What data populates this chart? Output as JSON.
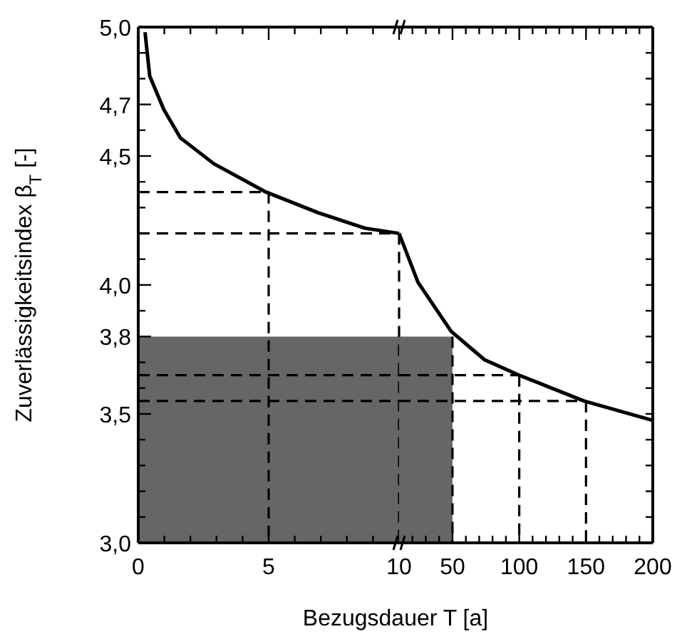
{
  "chart_data": [
    {
      "type": "line",
      "xlabel": "Bezugsdauer T [a]",
      "ylabel": "Zuverlässigkeitsindex β$_{T}$ [-]",
      "xlim": [
        0,
        10
      ],
      "ylim": [
        3,
        5
      ],
      "xticks": [
        0,
        {
          "value": 1,
          "label": null
        },
        {
          "value": 2,
          "label": null
        },
        {
          "value": 3,
          "label": null
        },
        {
          "value": 4,
          "label": null
        },
        5,
        {
          "value": 6,
          "label": null
        },
        {
          "value": 7,
          "label": null
        },
        {
          "value": 8,
          "label": null
        },
        {
          "value": 9,
          "label": null
        },
        10
      ],
      "yticks": [
        {
          "value": 3,
          "label": "3,0"
        },
        {
          "value": 3.1,
          "label": null
        },
        {
          "value": 3.2,
          "label": null
        },
        {
          "value": 3.3,
          "label": null
        },
        {
          "value": 3.4,
          "label": null
        },
        {
          "value": 3.5,
          "label": "3,5"
        },
        {
          "value": 3.6,
          "label": null
        },
        {
          "value": 3.7,
          "label": null
        },
        {
          "value": 3.8,
          "label": "3,8"
        },
        {
          "value": 3.9,
          "label": null
        },
        {
          "value": 4,
          "label": "4,0"
        },
        {
          "value": 4.1,
          "label": null
        },
        {
          "value": 4.2,
          "label": null
        },
        {
          "value": 4.3,
          "label": null
        },
        {
          "value": 4.4,
          "label": null
        },
        {
          "value": 4.5,
          "label": "4,5"
        },
        {
          "value": 4.6,
          "label": null
        },
        {
          "value": 4.7,
          "label": "4,7"
        },
        {
          "value": 4.8,
          "label": null
        },
        {
          "value": 4.9,
          "label": null
        },
        {
          "value": 5,
          "label": "5,0"
        }
      ],
      "series": [
        {
          "x": [
            0.26,
            0.44,
            0.98,
            1.62,
            2.9,
            4.9,
            6.9,
            8.7,
            10
          ],
          "values": [
            4.98,
            4.81,
            4.68,
            4.57,
            4.47,
            4.36,
            4.28,
            4.22,
            4.2
          ],
          "color": "#000000",
          "line_style": "solid"
        },
        {
          "x": [
            0,
            5
          ],
          "values": [
            4.36,
            4.36
          ],
          "color": "#000000",
          "line_style": "dashed"
        },
        {
          "x": [
            5,
            5
          ],
          "values": [
            4.36,
            3
          ],
          "color": "#000000",
          "line_style": "dashed"
        },
        {
          "x": [
            0,
            10
          ],
          "values": [
            4.2,
            4.2
          ],
          "color": "#000000",
          "line_style": "dashed"
        },
        {
          "x": [
            10,
            10
          ],
          "values": [
            4.2,
            3
          ],
          "color": "#000000",
          "line_style": "dashed"
        },
        {
          "x": [
            0,
            10
          ],
          "values": [
            3.65,
            3.65
          ],
          "color": "#000000",
          "line_style": "dashed"
        },
        {
          "x": [
            0,
            10
          ],
          "values": [
            3.55,
            3.55
          ],
          "color": "#000000",
          "line_style": "dashed"
        },
        {
          "type": "area",
          "x": [
            0,
            10
          ],
          "values": [
            3.8,
            3.8
          ],
          "color": "#666666"
        }
      ]
    },
    {
      "type": "line",
      "tick_labels": "x",
      "xlim": [
        10,
        200
      ],
      "ylim": [
        3,
        5
      ],
      "xticks": [
        {
          "value": 20,
          "label": null
        },
        {
          "value": 30,
          "label": null
        },
        {
          "value": 40,
          "label": null
        },
        50,
        {
          "value": 60,
          "label": null
        },
        {
          "value": 70,
          "label": null
        },
        {
          "value": 80,
          "label": null
        },
        {
          "value": 90,
          "label": null
        },
        100,
        {
          "value": 110,
          "label": null
        },
        {
          "value": 120,
          "label": null
        },
        {
          "value": 130,
          "label": null
        },
        {
          "value": 140,
          "label": null
        },
        150,
        {
          "value": 160,
          "label": null
        },
        {
          "value": 170,
          "label": null
        },
        {
          "value": 180,
          "label": null
        },
        {
          "value": 190,
          "label": null
        },
        200
      ],
      "yticks": [
        {
          "value": 3,
          "label": null
        },
        {
          "value": 3.1,
          "label": null
        },
        {
          "value": 3.2,
          "label": null
        },
        {
          "value": 3.3,
          "label": null
        },
        {
          "value": 3.4,
          "label": null
        },
        {
          "value": 3.5,
          "label": null
        },
        {
          "value": 3.6,
          "label": null
        },
        {
          "value": 3.7,
          "label": null
        },
        {
          "value": 3.8,
          "label": null
        },
        {
          "value": 3.9,
          "label": null
        },
        {
          "value": 4,
          "label": null
        },
        {
          "value": 4.1,
          "label": null
        },
        {
          "value": 4.2,
          "label": null
        },
        {
          "value": 4.3,
          "label": null
        },
        {
          "value": 4.4,
          "label": null
        },
        {
          "value": 4.5,
          "label": null
        },
        {
          "value": 4.6,
          "label": null
        },
        {
          "value": 4.7,
          "label": null
        },
        {
          "value": 4.8,
          "label": null
        },
        {
          "value": 4.9,
          "label": null
        },
        {
          "value": 5,
          "label": null
        }
      ],
      "series": [
        {
          "x": [
            10,
            24.2,
            49,
            74,
            100,
            148.5,
            200
          ],
          "values": [
            4.2,
            4.01,
            3.82,
            3.71,
            3.65,
            3.55,
            3.475
          ],
          "color": "#000000",
          "line_style": "solid"
        },
        {
          "x": [
            50,
            50
          ],
          "values": [
            3.8,
            3
          ],
          "color": "#000000",
          "line_style": "dashed"
        },
        {
          "x": [
            10,
            100
          ],
          "values": [
            3.65,
            3.65
          ],
          "color": "#000000",
          "line_style": "dashed"
        },
        {
          "x": [
            100,
            100
          ],
          "values": [
            3.65,
            3
          ],
          "color": "#000000",
          "line_style": "dashed"
        },
        {
          "x": [
            10,
            150
          ],
          "values": [
            3.55,
            3.55
          ],
          "color": "#000000",
          "line_style": "dashed"
        },
        {
          "x": [
            150,
            150
          ],
          "values": [
            3.55,
            3
          ],
          "color": "#000000",
          "line_style": "dashed"
        },
        {
          "type": "area",
          "x": [
            10,
            50
          ],
          "values": [
            3.8,
            3.8
          ],
          "color": "#666666"
        }
      ]
    }
  ]
}
